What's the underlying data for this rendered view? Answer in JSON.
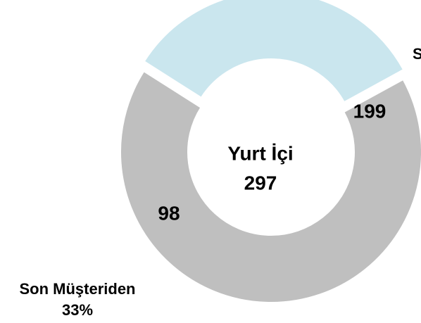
{
  "chart_data": {
    "type": "donut",
    "center_title": "Yurt İçi",
    "center_value": 297,
    "categories": [
      "S",
      "Son Müşteriden"
    ],
    "values": [
      199,
      98
    ],
    "percent_labels": [
      null,
      "33%"
    ],
    "colors": [
      "#bfbfbf",
      "#cae6ee"
    ]
  }
}
